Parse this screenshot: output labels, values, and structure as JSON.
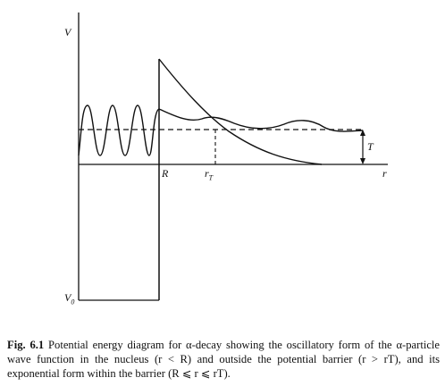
{
  "figure": {
    "labels": {
      "v": "V",
      "v0": "V",
      "v0_sub": "0",
      "r_nuclear": "R",
      "r_turning": "r",
      "r_turning_sub": "T",
      "r_axis": "r",
      "t_energy": "T"
    }
  },
  "caption": {
    "fig_num": "Fig. 6.1",
    "text": " Potential energy diagram for α-decay showing the oscillatory form of the α-particle wave function in the nucleus (r < R) and outside the potential barrier (r > rT), and its exponential form within the barrier (R ⩽ r ⩽ rT)."
  },
  "colors": {
    "ink": "#111111",
    "background": "#ffffff"
  }
}
